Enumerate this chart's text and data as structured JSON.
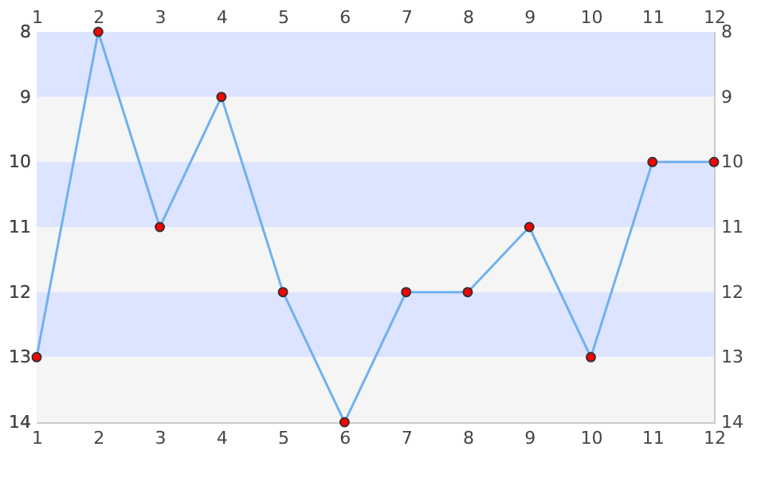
{
  "chart_data": {
    "type": "line",
    "x": [
      1,
      2,
      3,
      4,
      5,
      6,
      7,
      8,
      9,
      10,
      11,
      12
    ],
    "series": [
      {
        "color": "#70b0f0",
        "values": [
          13,
          8,
          11,
          9,
          12,
          14,
          12,
          12,
          11,
          13,
          10,
          10
        ]
      }
    ],
    "xlim": [
      1,
      12
    ],
    "xticks": [
      1,
      2,
      3,
      4,
      5,
      6,
      7,
      8,
      9,
      10,
      11,
      12
    ],
    "x2lim": [
      1,
      12
    ],
    "x2ticks": [
      1,
      2,
      3,
      4,
      5,
      6,
      7,
      8,
      9,
      10,
      11,
      12
    ],
    "ylim": [
      14,
      8
    ],
    "yticks": [
      8,
      9,
      10,
      11,
      12,
      13,
      14
    ],
    "y2lim": [
      14,
      8
    ],
    "y2ticks": [
      8,
      9,
      10,
      11,
      12,
      13,
      14
    ],
    "bands": [
      {
        "axis": "y",
        "from": 8,
        "to": 9,
        "color": "#dde4ff"
      },
      {
        "axis": "y",
        "from": 9,
        "to": 10,
        "color": "#f5f5f5"
      },
      {
        "axis": "y",
        "from": 10,
        "to": 11,
        "color": "#dde4ff"
      },
      {
        "axis": "y",
        "from": 11,
        "to": 12,
        "color": "#f5f5f5"
      },
      {
        "axis": "y",
        "from": 12,
        "to": 13,
        "color": "#dde4ff"
      },
      {
        "axis": "y",
        "from": 13,
        "to": 14,
        "color": "#f5f5f5"
      }
    ],
    "marker": "circle",
    "line_style": "solid",
    "grid": false
  }
}
